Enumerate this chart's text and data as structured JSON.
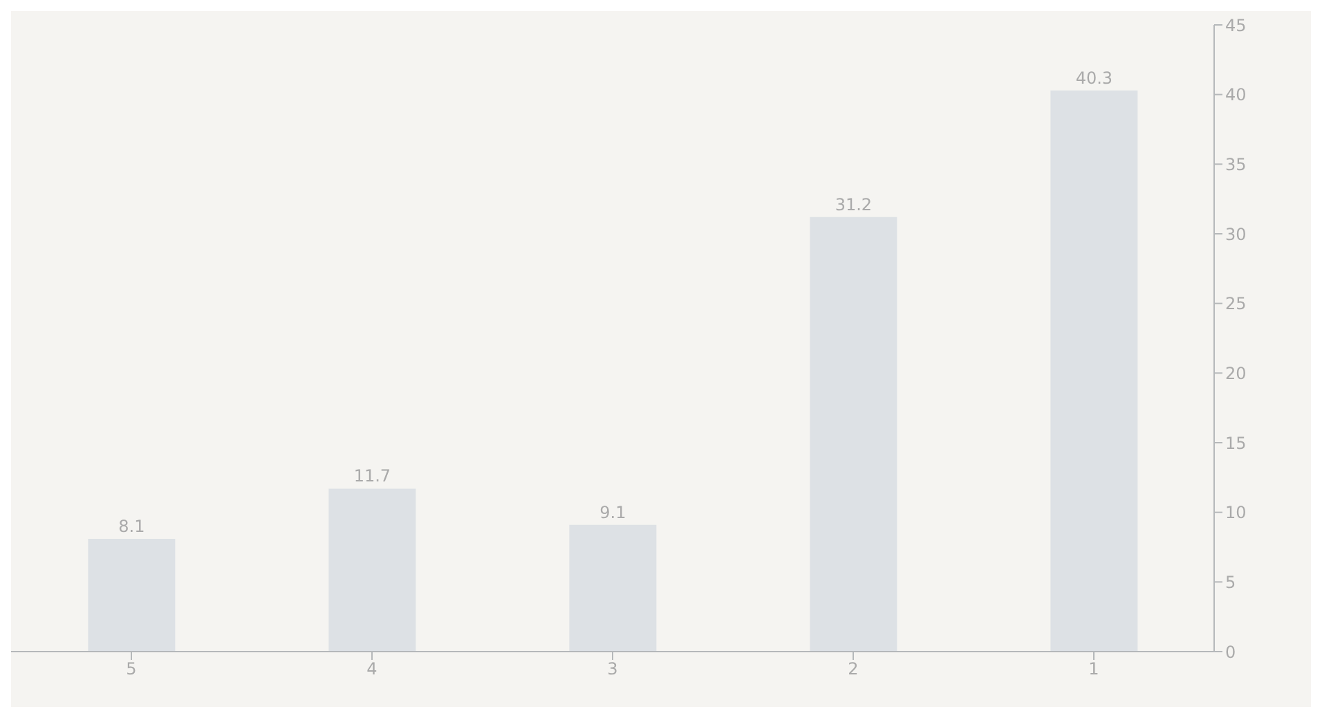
{
  "chart_data": {
    "type": "bar",
    "categories": [
      "5",
      "4",
      "3",
      "2",
      "1"
    ],
    "values": [
      8.1,
      11.7,
      9.1,
      31.2,
      40.3
    ],
    "color": "#dde1e5",
    "ylim": [
      0,
      45
    ],
    "yticks": [
      0,
      5,
      10,
      15,
      20,
      25,
      30,
      35,
      40,
      45
    ],
    "data_labels": true,
    "grid": false,
    "legend": false
  }
}
